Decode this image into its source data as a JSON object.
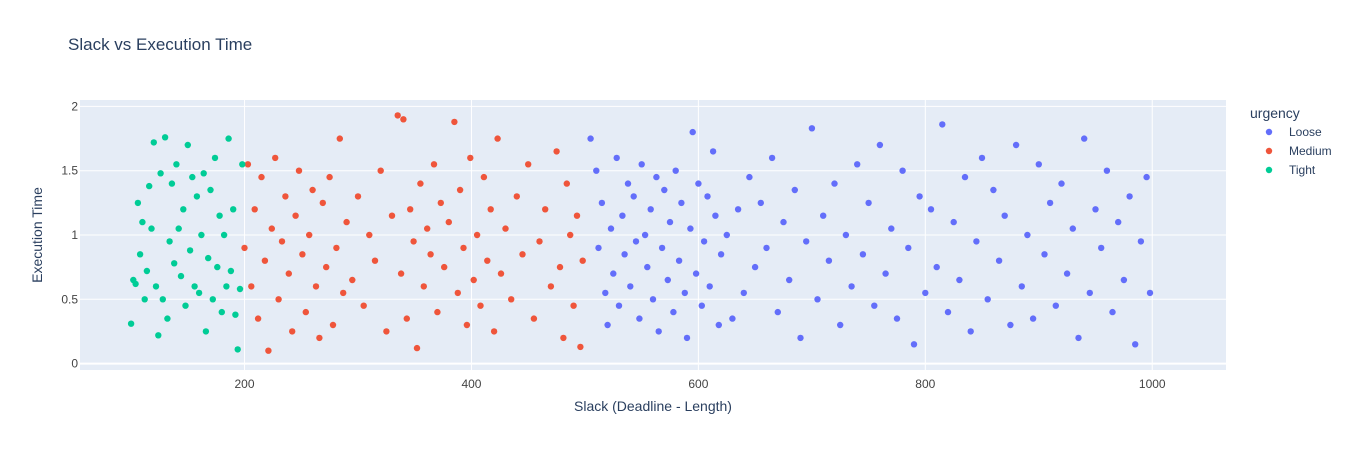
{
  "chart_data": {
    "type": "scatter",
    "title": "Slack vs Execution Time",
    "xlabel": "Slack (Deadline - Length)",
    "ylabel": "Execution Time",
    "xlim": [
      55,
      1065
    ],
    "ylim": [
      -0.05,
      2.05
    ],
    "xticks": [
      200,
      400,
      600,
      800,
      1000
    ],
    "yticks": [
      0,
      0.5,
      1,
      1.5,
      2
    ],
    "grid": true,
    "legend": {
      "title": "urgency",
      "placement": "top-right"
    },
    "series": [
      {
        "name": "Loose",
        "color": "#636efa",
        "points": [
          [
            505,
            1.75
          ],
          [
            510,
            1.5
          ],
          [
            512,
            0.9
          ],
          [
            515,
            1.25
          ],
          [
            518,
            0.55
          ],
          [
            520,
            0.3
          ],
          [
            523,
            1.05
          ],
          [
            525,
            0.7
          ],
          [
            528,
            1.6
          ],
          [
            530,
            0.45
          ],
          [
            533,
            1.15
          ],
          [
            535,
            0.85
          ],
          [
            538,
            1.4
          ],
          [
            540,
            0.6
          ],
          [
            543,
            1.3
          ],
          [
            545,
            0.95
          ],
          [
            548,
            0.35
          ],
          [
            550,
            1.55
          ],
          [
            553,
            1.0
          ],
          [
            555,
            0.75
          ],
          [
            558,
            1.2
          ],
          [
            560,
            0.5
          ],
          [
            563,
            1.45
          ],
          [
            565,
            0.25
          ],
          [
            568,
            0.9
          ],
          [
            570,
            1.35
          ],
          [
            573,
            0.65
          ],
          [
            575,
            1.1
          ],
          [
            578,
            0.4
          ],
          [
            580,
            1.5
          ],
          [
            583,
            0.8
          ],
          [
            585,
            1.25
          ],
          [
            588,
            0.55
          ],
          [
            590,
            0.2
          ],
          [
            593,
            1.05
          ],
          [
            595,
            1.8
          ],
          [
            598,
            0.7
          ],
          [
            600,
            1.4
          ],
          [
            603,
            0.45
          ],
          [
            605,
            0.95
          ],
          [
            608,
            1.3
          ],
          [
            610,
            0.6
          ],
          [
            613,
            1.65
          ],
          [
            615,
            1.15
          ],
          [
            618,
            0.3
          ],
          [
            620,
            0.85
          ],
          [
            625,
            1.0
          ],
          [
            630,
            0.35
          ],
          [
            635,
            1.2
          ],
          [
            640,
            0.55
          ],
          [
            645,
            1.45
          ],
          [
            650,
            0.75
          ],
          [
            655,
            1.25
          ],
          [
            660,
            0.9
          ],
          [
            665,
            1.6
          ],
          [
            670,
            0.4
          ],
          [
            675,
            1.1
          ],
          [
            680,
            0.65
          ],
          [
            685,
            1.35
          ],
          [
            690,
            0.2
          ],
          [
            695,
            0.95
          ],
          [
            700,
            1.83
          ],
          [
            705,
            0.5
          ],
          [
            710,
            1.15
          ],
          [
            715,
            0.8
          ],
          [
            720,
            1.4
          ],
          [
            725,
            0.3
          ],
          [
            730,
            1.0
          ],
          [
            735,
            0.6
          ],
          [
            740,
            1.55
          ],
          [
            745,
            0.85
          ],
          [
            750,
            1.25
          ],
          [
            755,
            0.45
          ],
          [
            760,
            1.7
          ],
          [
            765,
            0.7
          ],
          [
            770,
            1.05
          ],
          [
            775,
            0.35
          ],
          [
            780,
            1.5
          ],
          [
            785,
            0.9
          ],
          [
            790,
            0.15
          ],
          [
            795,
            1.3
          ],
          [
            800,
            0.55
          ],
          [
            805,
            1.2
          ],
          [
            810,
            0.75
          ],
          [
            815,
            1.86
          ],
          [
            820,
            0.4
          ],
          [
            825,
            1.1
          ],
          [
            830,
            0.65
          ],
          [
            835,
            1.45
          ],
          [
            840,
            0.25
          ],
          [
            845,
            0.95
          ],
          [
            850,
            1.6
          ],
          [
            855,
            0.5
          ],
          [
            860,
            1.35
          ],
          [
            865,
            0.8
          ],
          [
            870,
            1.15
          ],
          [
            875,
            0.3
          ],
          [
            880,
            1.7
          ],
          [
            885,
            0.6
          ],
          [
            890,
            1.0
          ],
          [
            895,
            0.35
          ],
          [
            900,
            1.55
          ],
          [
            905,
            0.85
          ],
          [
            910,
            1.25
          ],
          [
            915,
            0.45
          ],
          [
            920,
            1.4
          ],
          [
            925,
            0.7
          ],
          [
            930,
            1.05
          ],
          [
            935,
            0.2
          ],
          [
            940,
            1.75
          ],
          [
            945,
            0.55
          ],
          [
            950,
            1.2
          ],
          [
            955,
            0.9
          ],
          [
            960,
            1.5
          ],
          [
            965,
            0.4
          ],
          [
            970,
            1.1
          ],
          [
            975,
            0.65
          ],
          [
            980,
            1.3
          ],
          [
            985,
            0.15
          ],
          [
            990,
            0.95
          ],
          [
            995,
            1.45
          ],
          [
            998,
            0.55
          ]
        ]
      },
      {
        "name": "Medium",
        "color": "#ef553b",
        "points": [
          [
            200,
            0.9
          ],
          [
            203,
            1.55
          ],
          [
            206,
            0.6
          ],
          [
            209,
            1.2
          ],
          [
            212,
            0.35
          ],
          [
            215,
            1.45
          ],
          [
            218,
            0.8
          ],
          [
            221,
            0.1
          ],
          [
            224,
            1.05
          ],
          [
            227,
            1.6
          ],
          [
            230,
            0.5
          ],
          [
            233,
            0.95
          ],
          [
            236,
            1.3
          ],
          [
            239,
            0.7
          ],
          [
            242,
            0.25
          ],
          [
            245,
            1.15
          ],
          [
            248,
            1.5
          ],
          [
            251,
            0.85
          ],
          [
            254,
            0.4
          ],
          [
            257,
            1.0
          ],
          [
            260,
            1.35
          ],
          [
            263,
            0.6
          ],
          [
            266,
            0.2
          ],
          [
            269,
            1.25
          ],
          [
            272,
            0.75
          ],
          [
            275,
            1.45
          ],
          [
            278,
            0.3
          ],
          [
            281,
            0.9
          ],
          [
            284,
            1.75
          ],
          [
            287,
            0.55
          ],
          [
            290,
            1.1
          ],
          [
            295,
            0.65
          ],
          [
            300,
            1.3
          ],
          [
            305,
            0.45
          ],
          [
            310,
            1.0
          ],
          [
            315,
            0.8
          ],
          [
            320,
            1.5
          ],
          [
            325,
            0.25
          ],
          [
            330,
            1.15
          ],
          [
            335,
            1.93
          ],
          [
            338,
            0.7
          ],
          [
            340,
            1.9
          ],
          [
            343,
            0.35
          ],
          [
            346,
            1.2
          ],
          [
            349,
            0.95
          ],
          [
            352,
            0.12
          ],
          [
            355,
            1.4
          ],
          [
            358,
            0.6
          ],
          [
            361,
            1.05
          ],
          [
            364,
            0.85
          ],
          [
            367,
            1.55
          ],
          [
            370,
            0.4
          ],
          [
            373,
            1.25
          ],
          [
            376,
            0.75
          ],
          [
            380,
            1.1
          ],
          [
            385,
            1.88
          ],
          [
            388,
            0.55
          ],
          [
            390,
            1.35
          ],
          [
            393,
            0.9
          ],
          [
            396,
            0.3
          ],
          [
            399,
            1.6
          ],
          [
            402,
            0.65
          ],
          [
            405,
            1.0
          ],
          [
            408,
            0.45
          ],
          [
            411,
            1.45
          ],
          [
            414,
            0.8
          ],
          [
            417,
            1.2
          ],
          [
            420,
            0.25
          ],
          [
            423,
            1.75
          ],
          [
            426,
            0.7
          ],
          [
            430,
            1.05
          ],
          [
            435,
            0.5
          ],
          [
            440,
            1.3
          ],
          [
            445,
            0.85
          ],
          [
            450,
            1.55
          ],
          [
            455,
            0.35
          ],
          [
            460,
            0.95
          ],
          [
            465,
            1.2
          ],
          [
            470,
            0.6
          ],
          [
            475,
            1.65
          ],
          [
            478,
            0.75
          ],
          [
            481,
            0.2
          ],
          [
            484,
            1.4
          ],
          [
            487,
            1.0
          ],
          [
            490,
            0.45
          ],
          [
            493,
            1.15
          ],
          [
            496,
            0.13
          ],
          [
            498,
            0.8
          ]
        ]
      },
      {
        "name": "Tight",
        "color": "#00cc96",
        "points": [
          [
            100,
            0.31
          ],
          [
            102,
            0.65
          ],
          [
            104,
            0.62
          ],
          [
            106,
            1.25
          ],
          [
            108,
            0.85
          ],
          [
            110,
            1.1
          ],
          [
            112,
            0.5
          ],
          [
            114,
            0.72
          ],
          [
            116,
            1.38
          ],
          [
            118,
            1.05
          ],
          [
            120,
            1.72
          ],
          [
            122,
            0.6
          ],
          [
            124,
            0.22
          ],
          [
            126,
            1.48
          ],
          [
            128,
            0.5
          ],
          [
            130,
            1.76
          ],
          [
            132,
            0.35
          ],
          [
            134,
            0.95
          ],
          [
            136,
            1.4
          ],
          [
            138,
            0.78
          ],
          [
            140,
            1.55
          ],
          [
            142,
            1.05
          ],
          [
            144,
            0.68
          ],
          [
            146,
            1.2
          ],
          [
            148,
            0.45
          ],
          [
            150,
            1.7
          ],
          [
            152,
            0.88
          ],
          [
            154,
            1.45
          ],
          [
            156,
            0.6
          ],
          [
            158,
            1.3
          ],
          [
            160,
            0.55
          ],
          [
            162,
            1.0
          ],
          [
            164,
            1.48
          ],
          [
            166,
            0.25
          ],
          [
            168,
            0.82
          ],
          [
            170,
            1.35
          ],
          [
            172,
            0.5
          ],
          [
            174,
            1.6
          ],
          [
            176,
            0.75
          ],
          [
            178,
            1.15
          ],
          [
            180,
            0.4
          ],
          [
            182,
            1.0
          ],
          [
            184,
            0.6
          ],
          [
            186,
            1.75
          ],
          [
            188,
            0.72
          ],
          [
            190,
            1.2
          ],
          [
            192,
            0.38
          ],
          [
            194,
            0.11
          ],
          [
            196,
            0.58
          ],
          [
            198,
            1.55
          ]
        ]
      }
    ]
  }
}
